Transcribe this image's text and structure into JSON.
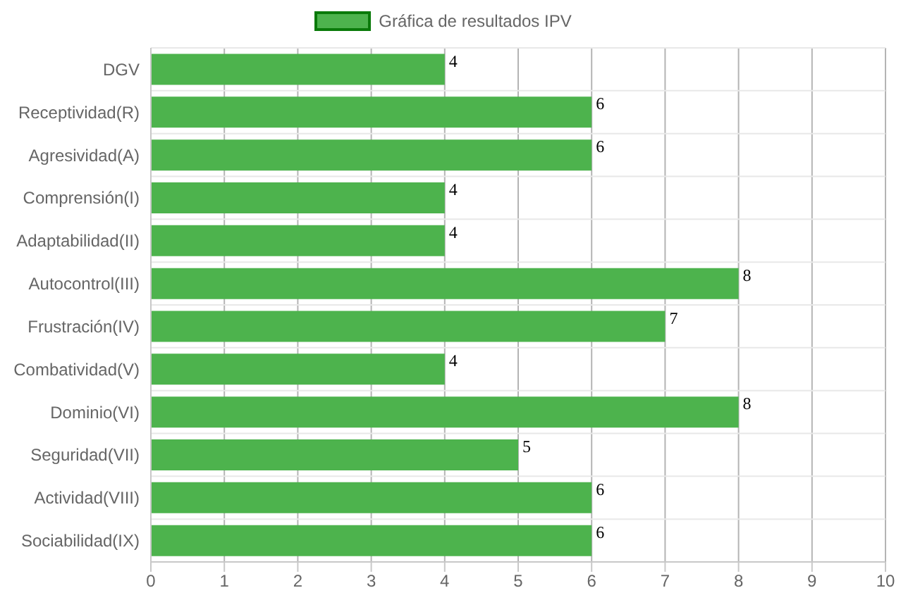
{
  "chart_data": {
    "type": "bar",
    "orientation": "horizontal",
    "categories": [
      "DGV",
      "Receptividad(R)",
      "Agresividad(A)",
      "Comprensión(I)",
      "Adaptabilidad(II)",
      "Autocontrol(III)",
      "Frustración(IV)",
      "Combatividad(V)",
      "Dominio(VI)",
      "Seguridad(VII)",
      "Actividad(VIII)",
      "Sociabilidad(IX)"
    ],
    "series": [
      {
        "name": "Gráfica de resultados IPV",
        "color": "#4db34d",
        "values": [
          4,
          6,
          6,
          4,
          4,
          8,
          7,
          4,
          8,
          5,
          6,
          6
        ]
      }
    ],
    "xlim": [
      0,
      10
    ],
    "xticks": [
      0,
      1,
      2,
      3,
      4,
      5,
      6,
      7,
      8,
      9,
      10
    ],
    "grid": true,
    "legend": "top",
    "data_labels": true
  }
}
